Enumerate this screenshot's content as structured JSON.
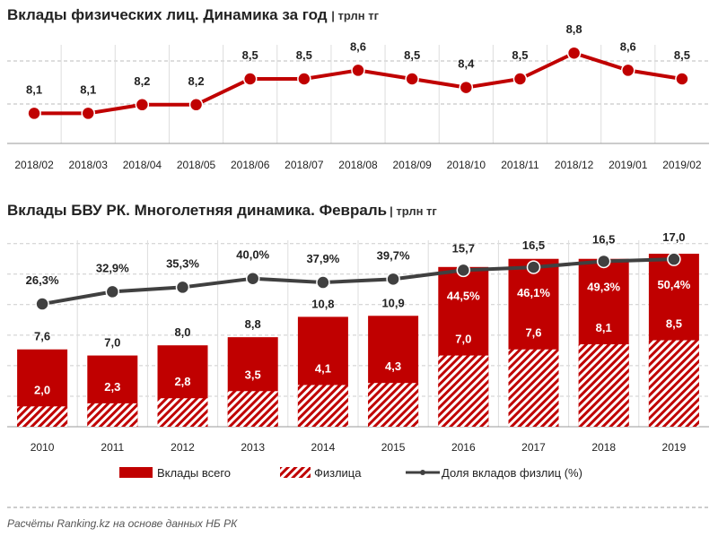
{
  "chart_data": [
    {
      "type": "line",
      "title": "Вклады физических лиц. Динамика за год",
      "unit": "| трлн тг",
      "categories": [
        "2018/02",
        "2018/03",
        "2018/04",
        "2018/05",
        "2018/06",
        "2018/07",
        "2018/08",
        "2018/09",
        "2018/10",
        "2018/11",
        "2018/12",
        "2019/01",
        "2019/02"
      ],
      "values": [
        8.1,
        8.1,
        8.2,
        8.2,
        8.5,
        8.5,
        8.6,
        8.5,
        8.4,
        8.5,
        8.8,
        8.6,
        8.5
      ],
      "labels": [
        "8,1",
        "8,1",
        "8,2",
        "8,2",
        "8,5",
        "8,5",
        "8,6",
        "8,5",
        "8,4",
        "8,5",
        "8,8",
        "8,6",
        "8,5"
      ],
      "ylim": [
        7.75,
        9.0
      ],
      "grid": "dashed horizontal, vertical column separators",
      "color": "#c00000"
    },
    {
      "type": "bar",
      "title": "Вклады БВУ РК. Многолетняя динамика. Февраль",
      "unit": "| трлн тг",
      "categories": [
        "2010",
        "2011",
        "2012",
        "2013",
        "2014",
        "2015",
        "2016",
        "2017",
        "2018",
        "2019"
      ],
      "series": [
        {
          "name": "Вклады всего",
          "values": [
            7.6,
            7.0,
            8.0,
            8.8,
            10.8,
            10.9,
            15.7,
            16.5,
            16.5,
            17.0
          ],
          "labels": [
            "7,6",
            "7,0",
            "8,0",
            "8,8",
            "10,8",
            "10,9",
            "15,7",
            "16,5",
            "16,5",
            "17,0"
          ],
          "color": "#c00000"
        },
        {
          "name": "Физлица",
          "values": [
            2.0,
            2.3,
            2.8,
            3.5,
            4.1,
            4.3,
            7.0,
            7.6,
            8.1,
            8.5
          ],
          "labels": [
            "2,0",
            "2,3",
            "2,8",
            "3,5",
            "4,1",
            "4,3",
            "7,0",
            "7,6",
            "8,1",
            "8,5"
          ],
          "color": "#c00000",
          "pattern": "hatched"
        },
        {
          "name": "Доля вкладов физлиц (%)",
          "type": "line",
          "axis": "secondary",
          "values": [
            26.3,
            32.9,
            35.3,
            40.0,
            37.9,
            39.7,
            44.5,
            46.1,
            49.3,
            50.4
          ],
          "labels": [
            "26,3%",
            "32,9%",
            "35,3%",
            "40,0%",
            "37,9%",
            "39,7%",
            "44,5%",
            "46,1%",
            "49,3%",
            "50,4%"
          ],
          "color": "#404040"
        }
      ],
      "ylim": [
        0,
        18
      ],
      "legend": "bottom"
    }
  ],
  "footer": "Расчёты Ranking.kz на основе данных  НБ  РК"
}
